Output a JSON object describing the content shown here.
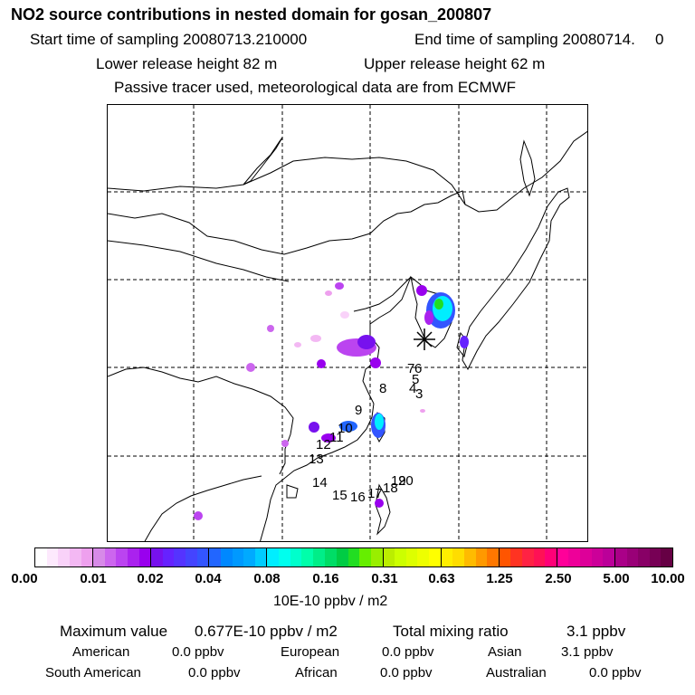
{
  "header": {
    "title": "NO2 source contributions in nested domain for gosan_200807",
    "start_label": "Start time of sampling 20080713.210000",
    "end_label": "End time of sampling 20080714.",
    "end_value": "0",
    "lower_release": "Lower release height   82 m",
    "upper_release": "Upper release height   62 m",
    "tracer_note": "Passive tracer used, meteorological data are from ECMWF"
  },
  "map": {
    "station_marker": "asterisk-station-icon",
    "trajectory_labels": [
      "7",
      "6",
      "5",
      "4",
      "3",
      "8",
      "9",
      "10",
      "11",
      "12",
      "13",
      "14",
      "15",
      "16",
      "17",
      "18",
      "19",
      "20"
    ]
  },
  "colorbar": {
    "tick_labels": [
      "0.00",
      "0.01",
      "0.02",
      "0.04",
      "0.08",
      "0.16",
      "0.31",
      "0.63",
      "1.25",
      "2.50",
      "5.00",
      "10.00"
    ],
    "units": "10E-10 ppbv / m2",
    "segments": [
      [
        "#ffffff",
        "#fde9fd",
        "#f9d2f9",
        "#f3b8f3",
        "#eea0ee"
      ],
      [
        "#d78ae8",
        "#cc66ee",
        "#bb44f0",
        "#aa22ee",
        "#9900ee"
      ],
      [
        "#7711ee",
        "#6622ff",
        "#5533ff",
        "#4444ff",
        "#3355ff"
      ],
      [
        "#2266ff",
        "#0088ff",
        "#0099ff",
        "#00aaff",
        "#00ccff"
      ],
      [
        "#00eeff",
        "#00ffee",
        "#00ffcc",
        "#00ffaa",
        "#00ee88"
      ],
      [
        "#00dd66",
        "#00cc44",
        "#22dd22",
        "#66ee00",
        "#99ee00"
      ],
      [
        "#bbee00",
        "#ccff00",
        "#ddff00",
        "#eeff00",
        "#ffff00"
      ],
      [
        "#ffee00",
        "#ffdd00",
        "#ffbb00",
        "#ff9900",
        "#ff7700"
      ],
      [
        "#ff5500",
        "#ff3322",
        "#ff2244",
        "#ff1155",
        "#ff0077"
      ],
      [
        "#ff0099",
        "#ee0099",
        "#dd0099",
        "#cc0099",
        "#bb0099"
      ],
      [
        "#aa0088",
        "#990077",
        "#880066",
        "#770055",
        "#660044"
      ]
    ]
  },
  "summary": {
    "max_label": "Maximum value",
    "max_value": "0.677E-10 ppbv / m2",
    "total_label": "Total mixing ratio",
    "total_value": "3.1 ppbv",
    "american_label": "American",
    "american_value": "0.0 ppbv",
    "european_label": "European",
    "european_value": "0.0 ppbv",
    "asian_label": "Asian",
    "asian_value": "3.1 ppbv",
    "south_american_label": "South American",
    "south_american_value": "0.0 ppbv",
    "african_label": "African",
    "african_value": "0.0 ppbv",
    "australian_label": "Australian",
    "australian_value": "0.0 ppbv"
  }
}
